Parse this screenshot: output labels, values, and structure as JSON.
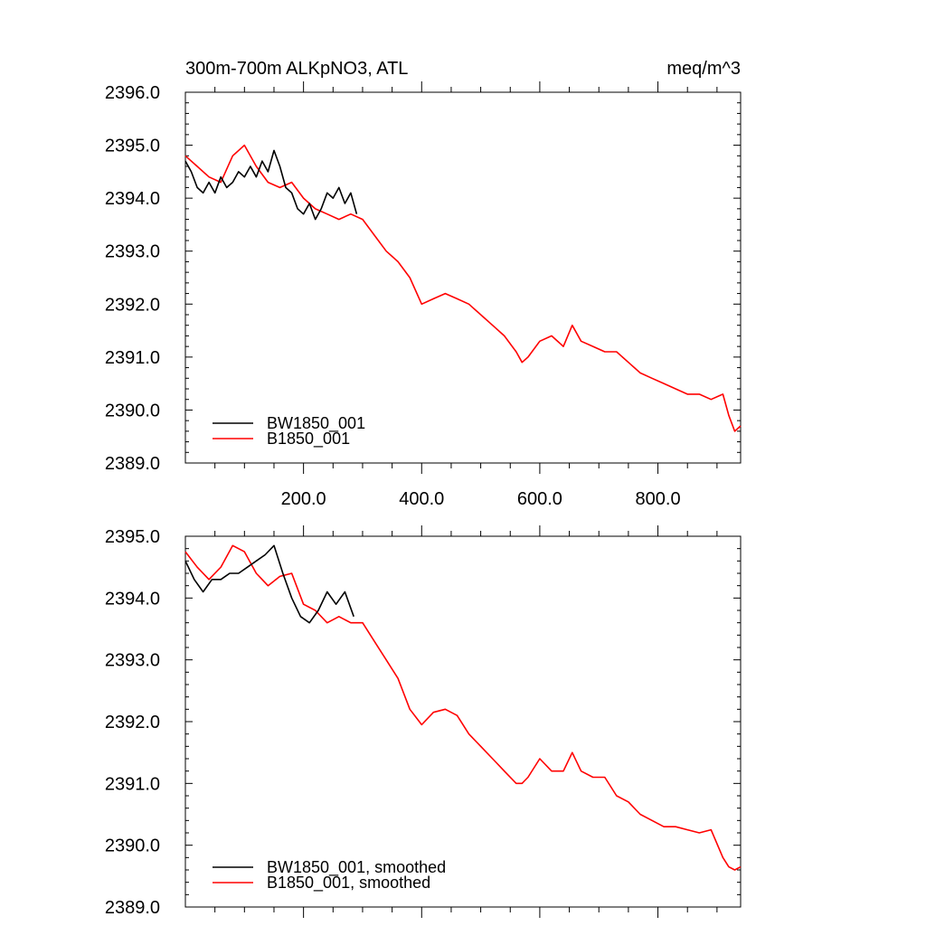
{
  "chart_data": [
    {
      "type": "line",
      "title": "300m-700m ALKpNO3, ATL",
      "units": "meq/m^3",
      "xlabel": "",
      "ylabel": "",
      "xlim": [
        0,
        940
      ],
      "ylim": [
        2389.0,
        2396.0
      ],
      "x_ticks": [
        200,
        400,
        600,
        800
      ],
      "x_tick_labels": [
        "200.0",
        "400.0",
        "600.0",
        "800.0"
      ],
      "y_ticks": [
        2389,
        2390,
        2391,
        2392,
        2393,
        2394,
        2395,
        2396
      ],
      "y_tick_labels": [
        "2389.0",
        "2390.0",
        "2391.0",
        "2392.0",
        "2393.0",
        "2394.0",
        "2395.0",
        "2396.0"
      ],
      "legend": "bottom-left",
      "series": [
        {
          "name": "BW1850_001",
          "color": "#000000",
          "x": [
            0,
            10,
            20,
            30,
            40,
            50,
            60,
            70,
            80,
            90,
            100,
            110,
            120,
            130,
            140,
            150,
            160,
            170,
            180,
            190,
            200,
            210,
            220,
            230,
            240,
            250,
            260,
            270,
            280,
            290
          ],
          "y": [
            2394.7,
            2394.5,
            2394.2,
            2394.1,
            2394.3,
            2394.1,
            2394.4,
            2394.2,
            2394.3,
            2394.5,
            2394.4,
            2394.6,
            2394.4,
            2394.7,
            2394.5,
            2394.9,
            2394.6,
            2394.2,
            2394.1,
            2393.8,
            2393.7,
            2393.9,
            2393.6,
            2393.8,
            2394.1,
            2394.0,
            2394.2,
            2393.9,
            2394.1,
            2393.7
          ]
        },
        {
          "name": "B1850_001",
          "color": "#ff0000",
          "x": [
            0,
            20,
            40,
            60,
            80,
            100,
            120,
            140,
            160,
            180,
            200,
            220,
            240,
            260,
            280,
            300,
            320,
            340,
            360,
            380,
            400,
            420,
            440,
            460,
            480,
            500,
            520,
            540,
            560,
            570,
            580,
            600,
            620,
            640,
            655,
            670,
            690,
            710,
            730,
            750,
            770,
            790,
            810,
            830,
            850,
            870,
            890,
            910,
            920,
            930,
            940
          ],
          "y": [
            2394.8,
            2394.6,
            2394.4,
            2394.3,
            2394.8,
            2395.0,
            2394.6,
            2394.3,
            2394.2,
            2394.3,
            2394.0,
            2393.8,
            2393.7,
            2393.6,
            2393.7,
            2393.6,
            2393.3,
            2393.0,
            2392.8,
            2392.5,
            2392.0,
            2392.1,
            2392.2,
            2392.1,
            2392.0,
            2391.8,
            2391.6,
            2391.4,
            2391.1,
            2390.9,
            2391.0,
            2391.3,
            2391.4,
            2391.2,
            2391.6,
            2391.3,
            2391.2,
            2391.1,
            2391.1,
            2390.9,
            2390.7,
            2390.6,
            2390.5,
            2390.4,
            2390.3,
            2390.3,
            2390.2,
            2390.3,
            2389.9,
            2389.6,
            2389.7
          ]
        }
      ]
    },
    {
      "type": "line",
      "title": "",
      "xlabel": "",
      "ylabel": "",
      "xlim": [
        0,
        940
      ],
      "ylim": [
        2389.0,
        2395.0
      ],
      "x_ticks": [
        200,
        400,
        600,
        800
      ],
      "x_tick_labels": [],
      "y_ticks": [
        2389,
        2390,
        2391,
        2392,
        2393,
        2394,
        2395
      ],
      "y_tick_labels": [
        "2389.0",
        "2390.0",
        "2391.0",
        "2392.0",
        "2393.0",
        "2394.0",
        "2395.0"
      ],
      "legend": "bottom-left",
      "series": [
        {
          "name": "BW1850_001, smoothed",
          "color": "#000000",
          "x": [
            0,
            15,
            30,
            45,
            60,
            75,
            90,
            105,
            120,
            135,
            150,
            165,
            180,
            195,
            210,
            225,
            240,
            255,
            270,
            285
          ],
          "y": [
            2394.6,
            2394.3,
            2394.1,
            2394.3,
            2394.3,
            2394.4,
            2394.4,
            2394.5,
            2394.6,
            2394.7,
            2394.85,
            2394.4,
            2394.0,
            2393.7,
            2393.6,
            2393.8,
            2394.1,
            2393.9,
            2394.1,
            2393.7
          ]
        },
        {
          "name": "B1850_001, smoothed",
          "color": "#ff0000",
          "x": [
            0,
            20,
            40,
            60,
            80,
            100,
            120,
            140,
            160,
            180,
            200,
            220,
            240,
            260,
            280,
            300,
            320,
            340,
            360,
            380,
            400,
            420,
            440,
            460,
            480,
            500,
            520,
            540,
            560,
            570,
            580,
            600,
            620,
            640,
            655,
            670,
            690,
            710,
            730,
            750,
            770,
            790,
            810,
            830,
            850,
            870,
            890,
            910,
            920,
            930,
            940
          ],
          "y": [
            2394.75,
            2394.5,
            2394.3,
            2394.5,
            2394.85,
            2394.75,
            2394.4,
            2394.2,
            2394.35,
            2394.4,
            2393.9,
            2393.8,
            2393.6,
            2393.7,
            2393.6,
            2393.6,
            2393.3,
            2393.0,
            2392.7,
            2392.2,
            2391.95,
            2392.15,
            2392.2,
            2392.1,
            2391.8,
            2391.6,
            2391.4,
            2391.2,
            2391.0,
            2391.0,
            2391.1,
            2391.4,
            2391.2,
            2391.2,
            2391.5,
            2391.2,
            2391.1,
            2391.1,
            2390.8,
            2390.7,
            2390.5,
            2390.4,
            2390.3,
            2390.3,
            2390.25,
            2390.2,
            2390.25,
            2389.8,
            2389.65,
            2389.6,
            2389.65
          ]
        }
      ]
    }
  ]
}
